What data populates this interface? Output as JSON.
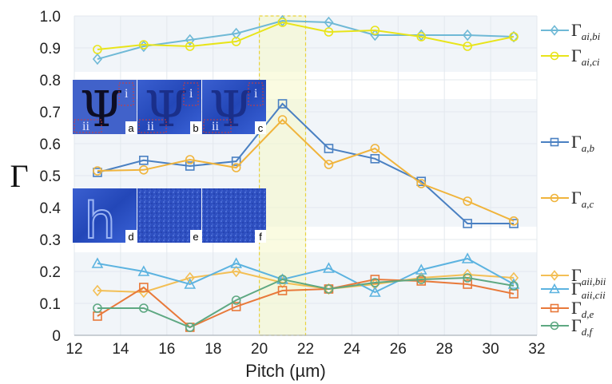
{
  "chart_data": {
    "type": "line",
    "xlabel": "Pitch (µm)",
    "ylabel": "Γ",
    "xlim": [
      12,
      32
    ],
    "ylim": [
      0,
      1.0
    ],
    "x_ticks": [
      "12",
      "14",
      "16",
      "18",
      "20",
      "22",
      "24",
      "26",
      "28",
      "30",
      "32"
    ],
    "y_ticks": [
      "0",
      "0.1",
      "0.2",
      "0.3",
      "0.4",
      "0.5",
      "0.6",
      "0.7",
      "0.8",
      "0.9",
      "1.0"
    ],
    "highlight_x_range": [
      20,
      22
    ],
    "legend_placement": "right",
    "series": [
      {
        "key": "ai_bi",
        "legend_main": "Γ",
        "legend_sub": "ai,bi",
        "color": "#6fb9d6",
        "marker": "diamond",
        "x": [
          13,
          15,
          17,
          19,
          21,
          23,
          25,
          27,
          29,
          31
        ],
        "y": [
          0.865,
          0.905,
          0.925,
          0.945,
          0.985,
          0.98,
          0.94,
          0.94,
          0.94,
          0.935
        ]
      },
      {
        "key": "ai_ci",
        "legend_main": "Γ",
        "legend_sub": "ai,ci",
        "color": "#e8e41a",
        "marker": "circle",
        "x": [
          13,
          15,
          17,
          19,
          21,
          23,
          25,
          27,
          29,
          31
        ],
        "y": [
          0.895,
          0.91,
          0.905,
          0.92,
          0.98,
          0.95,
          0.955,
          0.935,
          0.905,
          0.935
        ]
      },
      {
        "key": "a_b",
        "legend_main": "Γ",
        "legend_sub": "a,b",
        "color": "#4a80c2",
        "marker": "square",
        "x": [
          13,
          15,
          17,
          19,
          21,
          23,
          25,
          27,
          29,
          31
        ],
        "y": [
          0.51,
          0.548,
          0.53,
          0.545,
          0.725,
          0.585,
          0.553,
          0.482,
          0.35,
          0.35
        ]
      },
      {
        "key": "a_c",
        "legend_main": "Γ",
        "legend_sub": "a,c",
        "color": "#f0b43c",
        "marker": "circle",
        "x": [
          13,
          15,
          17,
          19,
          21,
          23,
          25,
          27,
          29,
          31
        ],
        "y": [
          0.515,
          0.518,
          0.55,
          0.525,
          0.675,
          0.535,
          0.585,
          0.475,
          0.42,
          0.358
        ]
      },
      {
        "key": "aii_bii",
        "legend_main": "Γ",
        "legend_sub": "aii,bii",
        "color": "#f3bf55",
        "marker": "diamond",
        "x": [
          13,
          15,
          17,
          19,
          21,
          23,
          25,
          27,
          29,
          31
        ],
        "y": [
          0.14,
          0.135,
          0.18,
          0.2,
          0.165,
          0.145,
          0.16,
          0.18,
          0.19,
          0.18
        ]
      },
      {
        "key": "aii_cii",
        "legend_main": "Γ",
        "legend_sub": "aii,cii",
        "color": "#5cb3e0",
        "marker": "triangle",
        "x": [
          13,
          15,
          17,
          19,
          21,
          23,
          25,
          27,
          29,
          31
        ],
        "y": [
          0.225,
          0.2,
          0.16,
          0.225,
          0.175,
          0.21,
          0.135,
          0.205,
          0.24,
          0.16
        ]
      },
      {
        "key": "d_e",
        "legend_main": "Γ",
        "legend_sub": "d,e",
        "color": "#e8793a",
        "marker": "square",
        "x": [
          13,
          15,
          17,
          19,
          21,
          23,
          25,
          27,
          29,
          31
        ],
        "y": [
          0.06,
          0.15,
          0.025,
          0.09,
          0.14,
          0.145,
          0.175,
          0.17,
          0.16,
          0.13
        ]
      },
      {
        "key": "d_f",
        "legend_main": "Γ",
        "legend_sub": "d,f",
        "color": "#5ea882",
        "marker": "circle",
        "x": [
          13,
          15,
          17,
          19,
          21,
          23,
          25,
          27,
          29,
          31
        ],
        "y": [
          0.085,
          0.085,
          0.025,
          0.11,
          0.175,
          0.145,
          0.165,
          0.175,
          0.18,
          0.155
        ]
      }
    ],
    "inset_panels": [
      {
        "letter": "a",
        "roman_left": "ii",
        "roman_right": "i",
        "glyph": "Ψ"
      },
      {
        "letter": "b",
        "roman_left": "ii",
        "roman_right": "i",
        "glyph": "Ψ"
      },
      {
        "letter": "c",
        "roman_left": "ii",
        "roman_right": "i",
        "glyph": "Ψ"
      },
      {
        "letter": "d",
        "glyph": "h"
      },
      {
        "letter": "e"
      },
      {
        "letter": "f"
      }
    ]
  }
}
